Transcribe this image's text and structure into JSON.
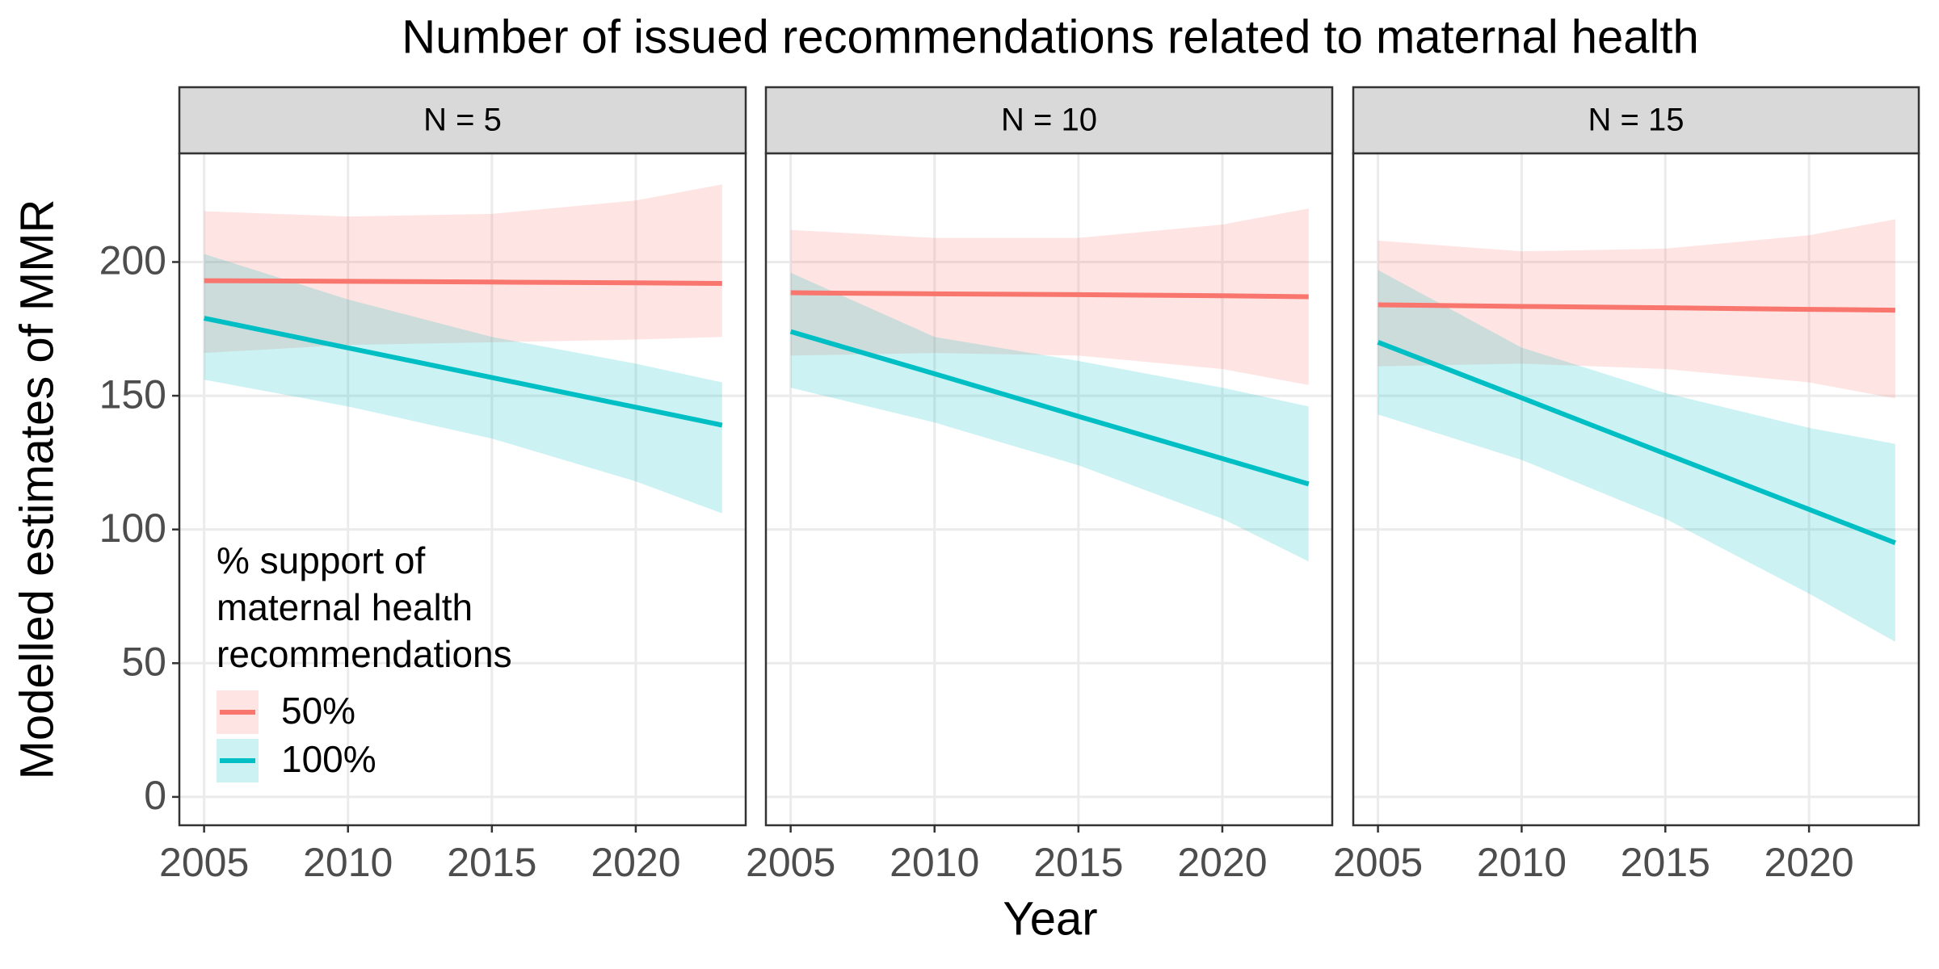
{
  "chart_data": {
    "type": "line",
    "title": "Number of issued recommendations related to maternal health",
    "x_label": "Year",
    "y_label": "Modelled estimates of MMR",
    "legend_title": [
      "% support of",
      "maternal health",
      "recommendations"
    ],
    "legend_position": "bottom-left",
    "grid": true,
    "x": [
      2005,
      2010,
      2015,
      2020,
      2023
    ],
    "xlim": [
      2004.14,
      2023.82
    ],
    "xticks": [
      2005,
      2010,
      2015,
      2020
    ],
    "ylim": [
      -10.6,
      240.6
    ],
    "yticks": [
      0,
      50,
      100,
      150,
      200
    ],
    "series": [
      {
        "name": "50%",
        "color": "#F8766D"
      },
      {
        "name": "100%",
        "color": "#00BFC4"
      }
    ],
    "facets": [
      {
        "label": "N = 5",
        "series": [
          {
            "values": [
              193,
              192.8,
              192.5,
              192.2,
              192
            ],
            "lower": [
              166,
              169,
              170,
              171,
              172
            ],
            "upper": [
              219,
              217,
              218,
              223,
              229
            ]
          },
          {
            "values": [
              179,
              167.9,
              156.8,
              145.7,
              139
            ],
            "lower": [
              156,
              146,
              134,
              118,
              106
            ],
            "upper": [
              203,
              186,
              172,
              162,
              155
            ]
          }
        ]
      },
      {
        "label": "N = 10",
        "series": [
          {
            "values": [
              188.5,
              188.1,
              187.8,
              187.4,
              187
            ],
            "lower": [
              165,
              166,
              165,
              160,
              154
            ],
            "upper": [
              212,
              209,
              209,
              214,
              220
            ]
          },
          {
            "values": [
              174,
              158.2,
              142.3,
              126.5,
              117
            ],
            "lower": [
              153,
              140,
              124,
              104,
              88
            ],
            "upper": [
              196,
              172,
              163,
              153,
              146
            ]
          }
        ]
      },
      {
        "label": "N = 15",
        "series": [
          {
            "values": [
              184,
              183.4,
              182.9,
              182.3,
              182
            ],
            "lower": [
              161,
              162,
              160,
              155,
              149
            ],
            "upper": [
              208,
              204,
              205,
              210,
              216
            ]
          },
          {
            "values": [
              170,
              149.2,
              128.3,
              107.5,
              95
            ],
            "lower": [
              143,
              126,
              104,
              76,
              58
            ],
            "upper": [
              197,
              168,
              151,
              138,
              132
            ]
          }
        ]
      }
    ]
  }
}
